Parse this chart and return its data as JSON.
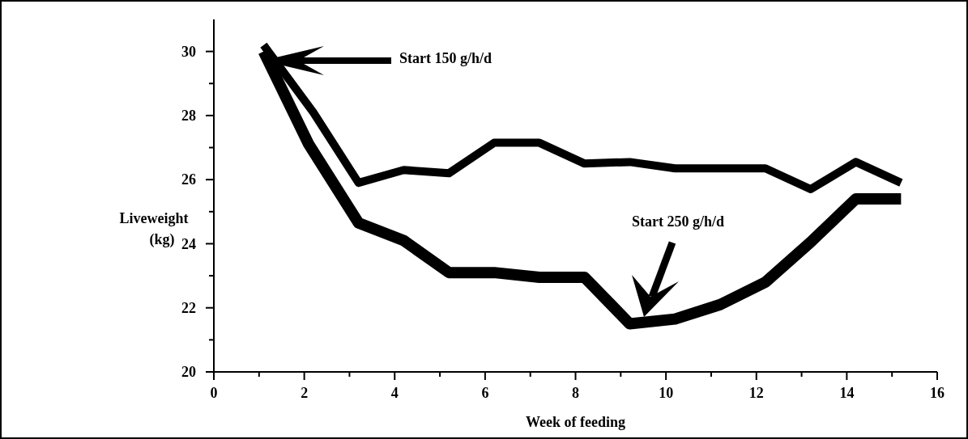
{
  "chart_data": {
    "type": "line",
    "xlabel": "Week of feeding",
    "ylabel": "Liveweight (kg)",
    "xlim": [
      0,
      16
    ],
    "xticks": [
      0,
      {
        "value": 1,
        "label": null
      },
      2,
      {
        "value": 3,
        "label": null
      },
      4,
      {
        "value": 5,
        "label": null
      },
      6,
      {
        "value": 7,
        "label": null
      },
      8,
      {
        "value": 9,
        "label": null
      },
      10,
      {
        "value": 11,
        "label": null
      },
      12,
      {
        "value": 13,
        "label": null
      },
      14,
      {
        "value": 15,
        "label": null
      },
      16
    ],
    "ylim": [
      20,
      31
    ],
    "yticks": [
      20,
      {
        "value": 21,
        "label": null
      },
      22,
      {
        "value": 23,
        "label": null
      },
      24,
      {
        "value": 25,
        "label": null
      },
      26,
      {
        "value": 27,
        "label": null
      },
      28,
      {
        "value": 29,
        "label": null
      },
      30
    ],
    "grid": false,
    "marker": "none",
    "line_style": "solid",
    "series": [
      {
        "color": "#000000",
        "x": [
          1.1,
          2.2,
          3.2,
          4.2,
          5.2,
          6.2,
          7.2,
          8.2,
          9.2,
          10.2,
          11.2,
          12.2,
          13.2,
          14.2,
          15.2
        ],
        "values": [
          30.2,
          28.1,
          25.9,
          26.3,
          26.2,
          27.15,
          27.15,
          26.5,
          26.55,
          26.35,
          26.35,
          26.35,
          25.7,
          26.55,
          25.9
        ]
      },
      {
        "color": "#000000",
        "x": [
          1.1,
          2.1,
          3.2,
          4.2,
          5.2,
          6.2,
          7.2,
          8.2,
          9.2,
          10.2,
          11.2,
          12.2,
          13.2,
          14.2,
          15.2
        ],
        "values": [
          30.0,
          27.1,
          24.65,
          24.1,
          23.1,
          23.1,
          22.95,
          22.95,
          21.5,
          21.65,
          22.1,
          22.8,
          24.05,
          25.4,
          25.4
        ]
      }
    ],
    "annotations": [
      "Start 150 g/h/d",
      "Start 250 g/h/d"
    ]
  }
}
